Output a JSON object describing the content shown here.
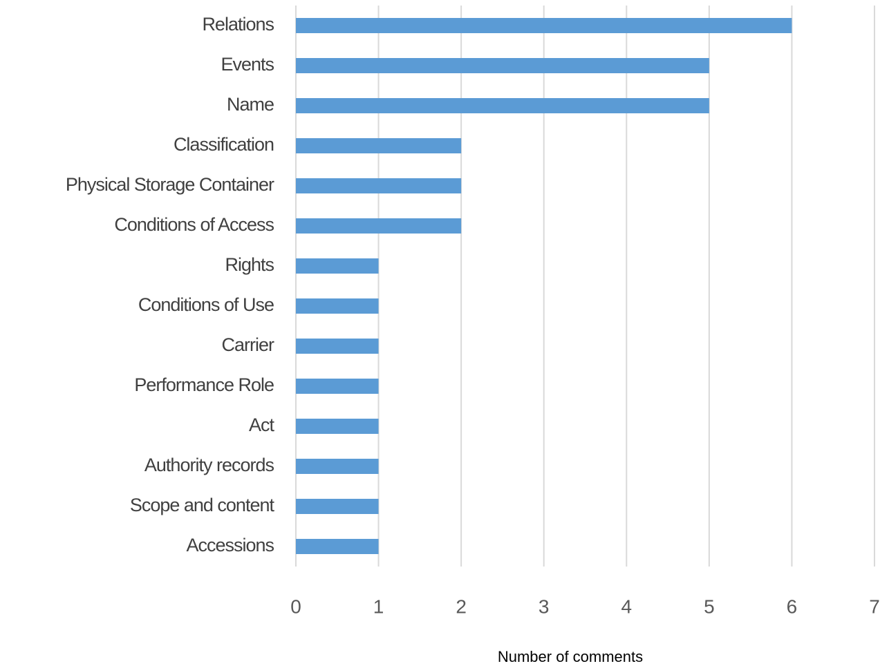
{
  "chart_data": {
    "type": "barh",
    "xlabel": "Number of comments",
    "categories": [
      "Relations",
      "Events",
      "Name",
      "Classification",
      "Physical Storage Container",
      "Conditions of Access",
      "Rights",
      "Conditions of Use",
      "Carrier",
      "Performance Role",
      "Act",
      "Authority records",
      "Scope and content",
      "Accessions"
    ],
    "values": [
      6,
      5,
      5,
      2,
      2,
      2,
      1,
      1,
      1,
      1,
      1,
      1,
      1,
      1
    ],
    "color": "#5b9bd5",
    "xlim": [
      0,
      7
    ],
    "xticks": [
      0,
      1,
      2,
      3,
      4,
      5,
      6,
      7
    ],
    "grid": true
  }
}
